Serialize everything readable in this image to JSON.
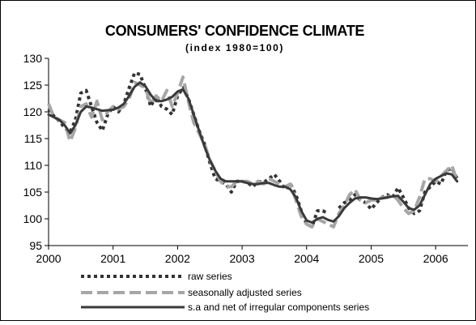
{
  "chart_data": {
    "type": "line",
    "title": "CONSUMERS' CONFIDENCE CLIMATE",
    "subtitle": "(index 1980=100)",
    "xlabel": "",
    "ylabel": "",
    "xlim": [
      2000,
      2006.5
    ],
    "ylim": [
      95,
      130
    ],
    "xticks": [
      "2000",
      "2001",
      "2002",
      "2003",
      "2004",
      "2005",
      "2006"
    ],
    "yticks": [
      "95",
      "100",
      "105",
      "110",
      "115",
      "120",
      "125",
      "130"
    ],
    "grid": false,
    "legend_position": "bottom",
    "series": [
      {
        "name": "raw series",
        "style": "dotted",
        "color": "#333333",
        "x": [
          2000.0,
          2000.0833,
          2000.1667,
          2000.25,
          2000.3333,
          2000.4167,
          2000.5,
          2000.5833,
          2000.6667,
          2000.75,
          2000.8333,
          2000.9167,
          2001.0,
          2001.0833,
          2001.1667,
          2001.25,
          2001.3333,
          2001.4167,
          2001.5,
          2001.5833,
          2001.6667,
          2001.75,
          2001.8333,
          2001.9167,
          2002.0,
          2002.0833,
          2002.1667,
          2002.25,
          2002.3333,
          2002.4167,
          2002.5,
          2002.5833,
          2002.6667,
          2002.75,
          2002.8333,
          2002.9167,
          2003.0,
          2003.0833,
          2003.1667,
          2003.25,
          2003.3333,
          2003.4167,
          2003.5,
          2003.5833,
          2003.6667,
          2003.75,
          2003.8333,
          2003.9167,
          2004.0,
          2004.0833,
          2004.1667,
          2004.25,
          2004.3333,
          2004.4167,
          2004.5,
          2004.5833,
          2004.6667,
          2004.75,
          2004.8333,
          2004.9167,
          2005.0,
          2005.0833,
          2005.1667,
          2005.25,
          2005.3333,
          2005.4167,
          2005.5,
          2005.5833,
          2005.6667,
          2005.75,
          2005.8333,
          2005.9167,
          2006.0,
          2006.0833,
          2006.1667,
          2006.25,
          2006.3333
        ],
        "y": [
          120.5,
          119.2,
          118.3,
          117.0,
          116.2,
          118.5,
          123.5,
          124.0,
          121.0,
          118.0,
          116.5,
          119.5,
          121.0,
          120.0,
          121.5,
          124.5,
          127.3,
          127.0,
          124.5,
          121.0,
          123.0,
          121.0,
          120.5,
          119.5,
          123.0,
          124.5,
          122.5,
          119.5,
          116.5,
          114.0,
          110.5,
          107.5,
          107.0,
          106.5,
          105.0,
          107.0,
          107.0,
          106.8,
          106.0,
          107.0,
          106.8,
          107.5,
          108.3,
          107.0,
          105.5,
          106.5,
          104.5,
          101.5,
          99.0,
          98.5,
          101.5,
          101.5,
          101.0,
          null,
          102.0,
          103.0,
          103.5,
          104.5,
          103.5,
          103.0,
          101.8,
          103.0,
          104.0,
          104.5,
          104.0,
          105.8,
          104.0,
          102.0,
          101.0,
          101.5,
          105.0,
          106.0,
          107.0,
          106.5,
          109.0,
          109.5,
          107.5
        ]
      },
      {
        "name": "seasonally adjusted series",
        "style": "dashed",
        "color": "#a6a6a6",
        "x": [
          2000.0,
          2000.0833,
          2000.1667,
          2000.25,
          2000.3333,
          2000.4167,
          2000.5,
          2000.5833,
          2000.6667,
          2000.75,
          2000.8333,
          2000.9167,
          2001.0,
          2001.0833,
          2001.1667,
          2001.25,
          2001.3333,
          2001.4167,
          2001.5,
          2001.5833,
          2001.6667,
          2001.75,
          2001.8333,
          2001.9167,
          2002.0,
          2002.0833,
          2002.1667,
          2002.25,
          2002.3333,
          2002.4167,
          2002.5,
          2002.5833,
          2002.6667,
          2002.75,
          2002.8333,
          2002.9167,
          2003.0,
          2003.0833,
          2003.1667,
          2003.25,
          2003.3333,
          2003.4167,
          2003.5,
          2003.5833,
          2003.6667,
          2003.75,
          2003.8333,
          2003.9167,
          2004.0,
          2004.0833,
          2004.1667,
          2004.25,
          2004.3333,
          2004.4167,
          2004.5,
          2004.5833,
          2004.6667,
          2004.75,
          2004.8333,
          2004.9167,
          2005.0,
          2005.0833,
          2005.1667,
          2005.25,
          2005.3333,
          2005.4167,
          2005.5,
          2005.5833,
          2005.6667,
          2005.75,
          2005.8333,
          2005.9167,
          2006.0,
          2006.0833,
          2006.1667,
          2006.25,
          2006.3333
        ],
        "y": [
          121.5,
          119.0,
          118.5,
          118.0,
          114.5,
          117.0,
          121.0,
          121.5,
          119.0,
          122.0,
          118.5,
          120.0,
          121.0,
          120.5,
          121.0,
          122.5,
          125.5,
          125.0,
          124.5,
          121.5,
          123.0,
          122.0,
          124.0,
          121.0,
          123.5,
          126.5,
          122.0,
          118.0,
          116.0,
          114.0,
          111.0,
          109.0,
          107.0,
          106.0,
          106.0,
          107.0,
          107.0,
          107.0,
          106.5,
          107.0,
          106.5,
          107.5,
          107.0,
          106.5,
          106.0,
          106.5,
          103.5,
          100.5,
          99.0,
          98.5,
          100.0,
          99.5,
          99.0,
          98.5,
          101.0,
          102.5,
          104.5,
          105.5,
          103.5,
          103.0,
          103.5,
          103.5,
          104.0,
          104.0,
          104.5,
          103.5,
          102.0,
          101.0,
          101.5,
          104.0,
          107.5,
          107.5,
          107.0,
          108.0,
          109.0,
          110.0,
          107.0
        ]
      },
      {
        "name": "s.a and net of irregular components series",
        "style": "solid",
        "color": "#3a3a3a",
        "x": [
          2000.0,
          2000.0833,
          2000.1667,
          2000.25,
          2000.3333,
          2000.4167,
          2000.5,
          2000.5833,
          2000.6667,
          2000.75,
          2000.8333,
          2000.9167,
          2001.0,
          2001.0833,
          2001.1667,
          2001.25,
          2001.3333,
          2001.4167,
          2001.5,
          2001.5833,
          2001.6667,
          2001.75,
          2001.8333,
          2001.9167,
          2002.0,
          2002.0833,
          2002.1667,
          2002.25,
          2002.3333,
          2002.4167,
          2002.5,
          2002.5833,
          2002.6667,
          2002.75,
          2002.8333,
          2002.9167,
          2003.0,
          2003.0833,
          2003.1667,
          2003.25,
          2003.3333,
          2003.4167,
          2003.5,
          2003.5833,
          2003.6667,
          2003.75,
          2003.8333,
          2003.9167,
          2004.0,
          2004.0833,
          2004.1667,
          2004.25,
          2004.3333,
          2004.4167,
          2004.5,
          2004.5833,
          2004.6667,
          2004.75,
          2004.8333,
          2004.9167,
          2005.0,
          2005.0833,
          2005.1667,
          2005.25,
          2005.3333,
          2005.4167,
          2005.5,
          2005.5833,
          2005.6667,
          2005.75,
          2005.8333,
          2005.9167,
          2006.0,
          2006.0833,
          2006.1667,
          2006.25,
          2006.3333
        ],
        "y": [
          119.5,
          119.0,
          118.5,
          117.5,
          116.0,
          117.5,
          120.0,
          121.0,
          120.8,
          120.5,
          120.2,
          120.3,
          120.4,
          120.8,
          121.5,
          123.0,
          124.7,
          125.5,
          124.8,
          123.2,
          122.0,
          122.0,
          122.3,
          122.8,
          123.8,
          124.2,
          122.5,
          119.5,
          116.5,
          113.5,
          111.0,
          109.0,
          107.5,
          107.0,
          107.0,
          107.0,
          107.0,
          106.7,
          106.5,
          106.5,
          106.7,
          106.7,
          106.3,
          106.0,
          106.0,
          105.5,
          104.0,
          101.5,
          99.7,
          99.3,
          100.0,
          100.3,
          99.8,
          99.5,
          100.5,
          102.0,
          103.0,
          103.8,
          104.0,
          104.0,
          103.8,
          103.7,
          103.8,
          104.0,
          104.2,
          104.3,
          103.2,
          102.0,
          101.7,
          102.5,
          104.5,
          106.5,
          107.5,
          108.0,
          108.5,
          108.3,
          107.0
        ]
      }
    ]
  }
}
